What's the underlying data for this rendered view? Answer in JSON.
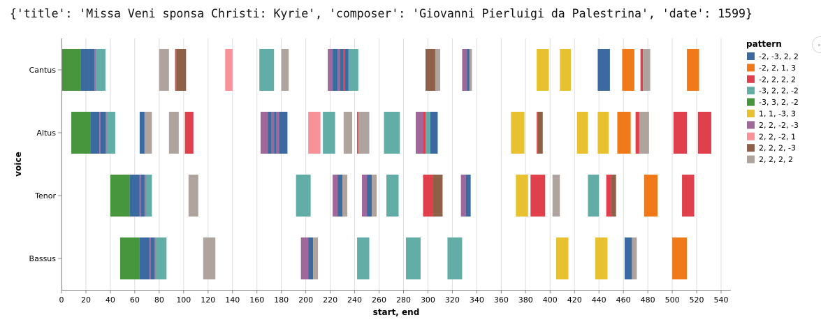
{
  "header": {
    "text": "{'title': 'Missa Veni sponsa Christi: Kyrie', 'composer': 'Giovanni Pierluigi da Palestrina', 'date': 1599}"
  },
  "chart_data": {
    "type": "bar",
    "orientation": "horizontal-range",
    "xlabel": "start, end",
    "ylabel": "voice",
    "xlim": [
      0,
      548
    ],
    "x_ticks": [
      0,
      20,
      40,
      60,
      80,
      100,
      120,
      140,
      160,
      180,
      200,
      220,
      240,
      260,
      280,
      300,
      320,
      340,
      360,
      380,
      400,
      420,
      440,
      460,
      480,
      500,
      520,
      540
    ],
    "grid": true,
    "voices": [
      "Cantus",
      "Altus",
      "Tenor",
      "Bassus"
    ],
    "legend": {
      "title": "pattern",
      "placement": "right",
      "entries": [
        {
          "label": "-2, -3, 2, 2",
          "color": "#3b6aa0"
        },
        {
          "label": "-2, 2, 1, 3",
          "color": "#f07a1a"
        },
        {
          "label": "-2, 2, 2, 2",
          "color": "#df404b"
        },
        {
          "label": "-3, 2, 2, -2",
          "color": "#62ada6"
        },
        {
          "label": "-3, 3, 2, -2",
          "color": "#47963d"
        },
        {
          "label": "1, 1, -3, 3",
          "color": "#e8c130"
        },
        {
          "label": "2, 2, -2, -3",
          "color": "#a0679b"
        },
        {
          "label": "2, 2, -2, 1",
          "color": "#f99199"
        },
        {
          "label": "2, 2, 2, -3",
          "color": "#8f6048"
        },
        {
          "label": "2, 2, 2, 2",
          "color": "#afa39e"
        }
      ]
    },
    "segments": [
      {
        "voice": "Cantus",
        "pattern": "-3, 3, 2, -2",
        "start": 0,
        "end": 16
      },
      {
        "voice": "Cantus",
        "pattern": "-2, -3, 2, 2",
        "start": 16,
        "end": 22
      },
      {
        "voice": "Cantus",
        "pattern": "-2, -3, 2, 2",
        "start": 22,
        "end": 27
      },
      {
        "voice": "Cantus",
        "pattern": "2, 2, -2, -3",
        "start": 27,
        "end": 28
      },
      {
        "voice": "Cantus",
        "pattern": "-3, 2, 2, -2",
        "start": 28,
        "end": 32
      },
      {
        "voice": "Cantus",
        "pattern": "-3, 2, 2, -2",
        "start": 32,
        "end": 36
      },
      {
        "voice": "Cantus",
        "pattern": "2, 2, 2, 2",
        "start": 80,
        "end": 88
      },
      {
        "voice": "Cantus",
        "pattern": "-2, 2, 2, 2",
        "start": 93,
        "end": 94
      },
      {
        "voice": "Cantus",
        "pattern": "2, 2, 2, -3",
        "start": 94,
        "end": 102
      },
      {
        "voice": "Cantus",
        "pattern": "2, 2, -2, 1",
        "start": 134,
        "end": 140
      },
      {
        "voice": "Cantus",
        "pattern": "-3, 2, 2, -2",
        "start": 162,
        "end": 174
      },
      {
        "voice": "Cantus",
        "pattern": "2, 2, 2, 2",
        "start": 180,
        "end": 186
      },
      {
        "voice": "Cantus",
        "pattern": "2, 2, -2, -3",
        "start": 218,
        "end": 222
      },
      {
        "voice": "Cantus",
        "pattern": "-2, -3, 2, 2",
        "start": 222,
        "end": 226
      },
      {
        "voice": "Cantus",
        "pattern": "2, 2, -2, -3",
        "start": 226,
        "end": 228
      },
      {
        "voice": "Cantus",
        "pattern": "-2, -3, 2, 2",
        "start": 228,
        "end": 231
      },
      {
        "voice": "Cantus",
        "pattern": "-2, 2, 2, 2",
        "start": 231,
        "end": 232
      },
      {
        "voice": "Cantus",
        "pattern": "-2, -3, 2, 2",
        "start": 232,
        "end": 235
      },
      {
        "voice": "Cantus",
        "pattern": "-3, 2, 2, -2",
        "start": 235,
        "end": 243
      },
      {
        "voice": "Cantus",
        "pattern": "2, 2, 2, -3",
        "start": 298,
        "end": 306
      },
      {
        "voice": "Cantus",
        "pattern": "2, 2, 2, 2",
        "start": 306,
        "end": 310
      },
      {
        "voice": "Cantus",
        "pattern": "2, 2, -2, -3",
        "start": 328,
        "end": 332
      },
      {
        "voice": "Cantus",
        "pattern": "-2, -3, 2, 2",
        "start": 332,
        "end": 334
      },
      {
        "voice": "Cantus",
        "pattern": "2, 2, 2, 2",
        "start": 334,
        "end": 336
      },
      {
        "voice": "Cantus",
        "pattern": "1, 1, -3, 3",
        "start": 389,
        "end": 399
      },
      {
        "voice": "Cantus",
        "pattern": "1, 1, -3, 3",
        "start": 408,
        "end": 417
      },
      {
        "voice": "Cantus",
        "pattern": "-2, -3, 2, 2",
        "start": 439,
        "end": 449
      },
      {
        "voice": "Cantus",
        "pattern": "-2, 2, 1, 3",
        "start": 459,
        "end": 469
      },
      {
        "voice": "Cantus",
        "pattern": "-2, 2, 2, 2",
        "start": 474,
        "end": 476
      },
      {
        "voice": "Cantus",
        "pattern": "2, 2, 2, 2",
        "start": 476,
        "end": 482
      },
      {
        "voice": "Cantus",
        "pattern": "-2, 2, 1, 3",
        "start": 512,
        "end": 522
      },
      {
        "voice": "Altus",
        "pattern": "-3, 3, 2, -2",
        "start": 8,
        "end": 24
      },
      {
        "voice": "Altus",
        "pattern": "-2, -3, 2, 2",
        "start": 24,
        "end": 31
      },
      {
        "voice": "Altus",
        "pattern": "2, 2, -2, -3",
        "start": 31,
        "end": 32
      },
      {
        "voice": "Altus",
        "pattern": "-2, -3, 2, 2",
        "start": 32,
        "end": 36
      },
      {
        "voice": "Altus",
        "pattern": "2, 2, -2, -3",
        "start": 36,
        "end": 37
      },
      {
        "voice": "Altus",
        "pattern": "-3, 2, 2, -2",
        "start": 37,
        "end": 44
      },
      {
        "voice": "Altus",
        "pattern": "-2, -3, 2, 2",
        "start": 64,
        "end": 68
      },
      {
        "voice": "Altus",
        "pattern": "2, 2, 2, 2",
        "start": 68,
        "end": 74
      },
      {
        "voice": "Altus",
        "pattern": "2, 2, 2, 2",
        "start": 88,
        "end": 96
      },
      {
        "voice": "Altus",
        "pattern": "-2, 2, 2, 2",
        "start": 101,
        "end": 108
      },
      {
        "voice": "Altus",
        "pattern": "2, 2, -2, -3",
        "start": 163,
        "end": 169
      },
      {
        "voice": "Altus",
        "pattern": "-2, -3, 2, 2",
        "start": 169,
        "end": 172
      },
      {
        "voice": "Altus",
        "pattern": "2, 2, -2, -3",
        "start": 172,
        "end": 174
      },
      {
        "voice": "Altus",
        "pattern": "-2, -3, 2, 2",
        "start": 174,
        "end": 176
      },
      {
        "voice": "Altus",
        "pattern": "2, 2, -2, -3",
        "start": 176,
        "end": 178
      },
      {
        "voice": "Altus",
        "pattern": "-2, -3, 2, 2",
        "start": 178,
        "end": 185
      },
      {
        "voice": "Altus",
        "pattern": "2, 2, -2, 1",
        "start": 202,
        "end": 212
      },
      {
        "voice": "Altus",
        "pattern": "-3, 2, 2, -2",
        "start": 214,
        "end": 224
      },
      {
        "voice": "Altus",
        "pattern": "2, 2, 2, 2",
        "start": 231,
        "end": 238
      },
      {
        "voice": "Altus",
        "pattern": "-2, 2, 2, 2",
        "start": 242,
        "end": 243
      },
      {
        "voice": "Altus",
        "pattern": "2, 2, 2, 2",
        "start": 243,
        "end": 252
      },
      {
        "voice": "Altus",
        "pattern": "-3, 2, 2, -2",
        "start": 264,
        "end": 277
      },
      {
        "voice": "Altus",
        "pattern": "2, 2, -2, -3",
        "start": 290,
        "end": 296
      },
      {
        "voice": "Altus",
        "pattern": "-2, 2, 2, 2",
        "start": 296,
        "end": 298
      },
      {
        "voice": "Altus",
        "pattern": "-3, 2, 2, -2",
        "start": 298,
        "end": 302
      },
      {
        "voice": "Altus",
        "pattern": "-2, -3, 2, 2",
        "start": 302,
        "end": 308
      },
      {
        "voice": "Altus",
        "pattern": "1, 1, -3, 3",
        "start": 368,
        "end": 379
      },
      {
        "voice": "Altus",
        "pattern": "-2, 2, 2, 2",
        "start": 389,
        "end": 390
      },
      {
        "voice": "Altus",
        "pattern": "2, 2, 2, -3",
        "start": 390,
        "end": 394
      },
      {
        "voice": "Altus",
        "pattern": "1, 1, -3, 3",
        "start": 422,
        "end": 431
      },
      {
        "voice": "Altus",
        "pattern": "1, 1, -3, 3",
        "start": 439,
        "end": 448
      },
      {
        "voice": "Altus",
        "pattern": "-2, 2, 1, 3",
        "start": 455,
        "end": 466
      },
      {
        "voice": "Altus",
        "pattern": "-2, 2, 2, 2",
        "start": 470,
        "end": 473
      },
      {
        "voice": "Altus",
        "pattern": "2, 2, 2, 2",
        "start": 473,
        "end": 481
      },
      {
        "voice": "Altus",
        "pattern": "-2, 2, 2, 2",
        "start": 501,
        "end": 512
      },
      {
        "voice": "Altus",
        "pattern": "-2, 2, 2, 2",
        "start": 521,
        "end": 532
      },
      {
        "voice": "Tenor",
        "pattern": "-3, 3, 2, -2",
        "start": 40,
        "end": 56
      },
      {
        "voice": "Tenor",
        "pattern": "-2, -3, 2, 2",
        "start": 56,
        "end": 64
      },
      {
        "voice": "Tenor",
        "pattern": "2, 2, -2, -3",
        "start": 64,
        "end": 65
      },
      {
        "voice": "Tenor",
        "pattern": "-2, -3, 2, 2",
        "start": 65,
        "end": 68
      },
      {
        "voice": "Tenor",
        "pattern": "2, 2, -2, -3",
        "start": 68,
        "end": 69
      },
      {
        "voice": "Tenor",
        "pattern": "-3, 2, 2, -2",
        "start": 69,
        "end": 74
      },
      {
        "voice": "Tenor",
        "pattern": "2, 2, 2, 2",
        "start": 104,
        "end": 112
      },
      {
        "voice": "Tenor",
        "pattern": "-3, 2, 2, -2",
        "start": 192,
        "end": 204
      },
      {
        "voice": "Tenor",
        "pattern": "2, 2, -2, -3",
        "start": 222,
        "end": 226
      },
      {
        "voice": "Tenor",
        "pattern": "-2, -3, 2, 2",
        "start": 226,
        "end": 230
      },
      {
        "voice": "Tenor",
        "pattern": "2, 2, 2, 2",
        "start": 230,
        "end": 234
      },
      {
        "voice": "Tenor",
        "pattern": "2, 2, -2, -3",
        "start": 246,
        "end": 250
      },
      {
        "voice": "Tenor",
        "pattern": "-2, -3, 2, 2",
        "start": 250,
        "end": 254
      },
      {
        "voice": "Tenor",
        "pattern": "2, 2, 2, 2",
        "start": 254,
        "end": 258
      },
      {
        "voice": "Tenor",
        "pattern": "-3, 2, 2, -2",
        "start": 266,
        "end": 276
      },
      {
        "voice": "Tenor",
        "pattern": "-2, 2, 2, 2",
        "start": 296,
        "end": 304
      },
      {
        "voice": "Tenor",
        "pattern": "2, 2, 2, -3",
        "start": 304,
        "end": 312
      },
      {
        "voice": "Tenor",
        "pattern": "2, 2, -2, -3",
        "start": 327,
        "end": 331
      },
      {
        "voice": "Tenor",
        "pattern": "-2, -3, 2, 2",
        "start": 331,
        "end": 335
      },
      {
        "voice": "Tenor",
        "pattern": "1, 1, -3, 3",
        "start": 372,
        "end": 382
      },
      {
        "voice": "Tenor",
        "pattern": "-2, 2, 2, 2",
        "start": 384,
        "end": 396
      },
      {
        "voice": "Tenor",
        "pattern": "2, 2, 2, 2",
        "start": 402,
        "end": 408
      },
      {
        "voice": "Tenor",
        "pattern": "-3, 2, 2, -2",
        "start": 431,
        "end": 440
      },
      {
        "voice": "Tenor",
        "pattern": "-2, 2, 2, 2",
        "start": 446,
        "end": 450
      },
      {
        "voice": "Tenor",
        "pattern": "2, 2, 2, -3",
        "start": 450,
        "end": 454
      },
      {
        "voice": "Tenor",
        "pattern": "-2, 2, 1, 3",
        "start": 477,
        "end": 488
      },
      {
        "voice": "Tenor",
        "pattern": "-2, 2, 2, 2",
        "start": 508,
        "end": 518
      },
      {
        "voice": "Bassus",
        "pattern": "-3, 3, 2, -2",
        "start": 48,
        "end": 64
      },
      {
        "voice": "Bassus",
        "pattern": "-2, -3, 2, 2",
        "start": 64,
        "end": 72
      },
      {
        "voice": "Bassus",
        "pattern": "2, 2, -2, -3",
        "start": 72,
        "end": 73
      },
      {
        "voice": "Bassus",
        "pattern": "-2, -3, 2, 2",
        "start": 73,
        "end": 76
      },
      {
        "voice": "Bassus",
        "pattern": "2, 2, -2, -3",
        "start": 76,
        "end": 77
      },
      {
        "voice": "Bassus",
        "pattern": "-3, 2, 2, -2",
        "start": 77,
        "end": 86
      },
      {
        "voice": "Bassus",
        "pattern": "2, 2, 2, 2",
        "start": 116,
        "end": 126
      },
      {
        "voice": "Bassus",
        "pattern": "2, 2, -2, -3",
        "start": 196,
        "end": 202
      },
      {
        "voice": "Bassus",
        "pattern": "-2, -3, 2, 2",
        "start": 202,
        "end": 206
      },
      {
        "voice": "Bassus",
        "pattern": "2, 2, 2, 2",
        "start": 206,
        "end": 210
      },
      {
        "voice": "Bassus",
        "pattern": "-3, 2, 2, -2",
        "start": 242,
        "end": 252
      },
      {
        "voice": "Bassus",
        "pattern": "-3, 2, 2, -2",
        "start": 282,
        "end": 294
      },
      {
        "voice": "Bassus",
        "pattern": "-3, 2, 2, -2",
        "start": 316,
        "end": 328
      },
      {
        "voice": "Bassus",
        "pattern": "1, 1, -3, 3",
        "start": 405,
        "end": 415
      },
      {
        "voice": "Bassus",
        "pattern": "1, 1, -3, 3",
        "start": 437,
        "end": 447
      },
      {
        "voice": "Bassus",
        "pattern": "-2, -3, 2, 2",
        "start": 461,
        "end": 467
      },
      {
        "voice": "Bassus",
        "pattern": "2, 2, 2, 2",
        "start": 467,
        "end": 471
      },
      {
        "voice": "Bassus",
        "pattern": "-2, 2, 1, 3",
        "start": 500,
        "end": 512
      }
    ]
  }
}
